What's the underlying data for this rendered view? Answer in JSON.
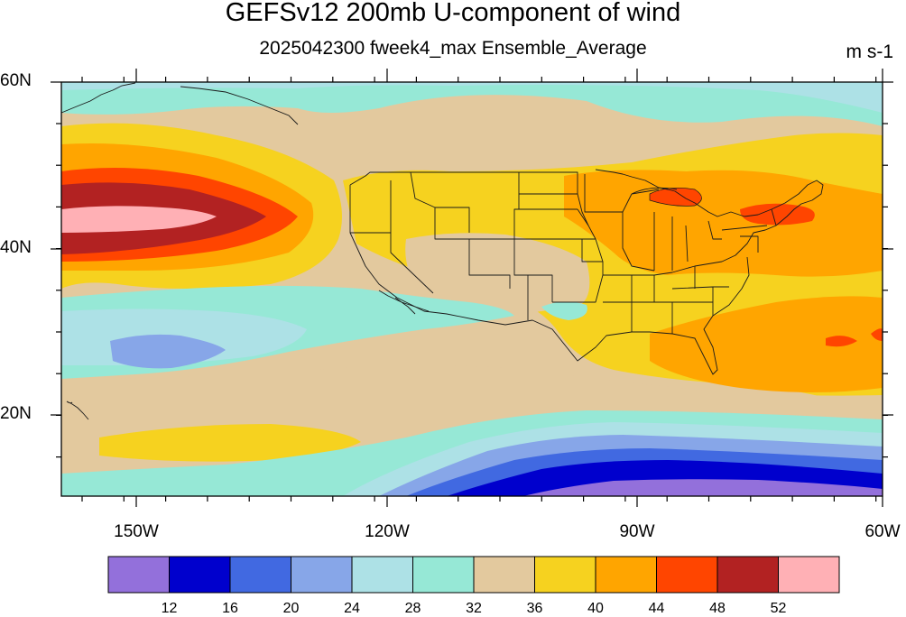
{
  "header": {
    "title": "GEFSv12 200mb U-component of wind",
    "subtitle": "2025042300 fweek4_max Ensemble_Average",
    "units": "m s-1"
  },
  "map": {
    "lat_labels": [
      "60N",
      "40N",
      "20N"
    ],
    "lon_labels": [
      "150W",
      "120W",
      "90W",
      "60W"
    ],
    "colors": {
      "c0": "#9370db",
      "c1": "#0000cd",
      "c2": "#4169e1",
      "c3": "#87a6e8",
      "c4": "#ade1e6",
      "c5": "#96e8d6",
      "c6": "#e3c99e",
      "c7": "#f6d21f",
      "c8": "#ffa500",
      "c9": "#ff4500",
      "c10": "#b22222",
      "c11": "#ffb0b5"
    }
  },
  "colorbar": {
    "labels": [
      "12",
      "16",
      "20",
      "24",
      "28",
      "32",
      "36",
      "40",
      "44",
      "48",
      "52"
    ],
    "colors": [
      "#9370db",
      "#0000cd",
      "#4169e1",
      "#87a6e8",
      "#ade1e6",
      "#96e8d6",
      "#e3c99e",
      "#f6d21f",
      "#ffa500",
      "#ff4500",
      "#b22222",
      "#ffb0b5"
    ]
  }
}
